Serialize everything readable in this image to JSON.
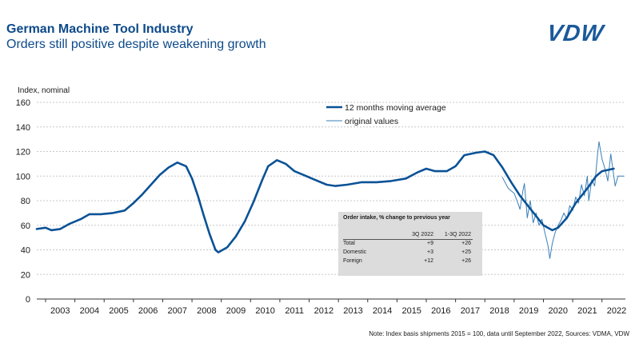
{
  "header": {
    "title": "German Machine Tool Industry",
    "subtitle": "Orders still positive despite weakening growth",
    "logo_text": "VDW"
  },
  "footer": {
    "note": "Note: Index basis shipments 2015 = 100, data until September 2022, Sources: VDMA, VDW"
  },
  "colors": {
    "title": "#0d4a8a",
    "moving_average": "#0a5296",
    "original": "#3a7fb8",
    "table_bg": "#dcdcdc"
  },
  "table": {
    "title": "Order intake, % change to previous year",
    "columns": [
      "3Q 2022",
      "1-3Q 2022"
    ],
    "rows": [
      {
        "label": "Total",
        "q3": "+9",
        "ytd": "+26"
      },
      {
        "label": "Domestic",
        "q3": "+3",
        "ytd": "+25"
      },
      {
        "label": "Foreign",
        "q3": "+12",
        "ytd": "+26"
      }
    ]
  },
  "chart_data": {
    "type": "line",
    "title": "German Machine Tool Industry",
    "ylabel": "Index, nominal",
    "xlabel": "",
    "ylim": [
      0,
      160
    ],
    "yticks": [
      "0",
      "20",
      "40",
      "60",
      "80",
      "100",
      "120",
      "140",
      "160"
    ],
    "xlim": [
      2002.7,
      2022.8
    ],
    "categories": [
      "2003",
      "2004",
      "2005",
      "2006",
      "2007",
      "2008",
      "2009",
      "2010",
      "2011",
      "2012",
      "2013",
      "2014",
      "2015",
      "2016",
      "2017",
      "2018",
      "2019",
      "2020",
      "2021",
      "2022"
    ],
    "legend": {
      "position": "top-center",
      "entries": [
        "12 months moving average",
        "original values"
      ]
    },
    "series": [
      {
        "name": "12 months moving average",
        "points": [
          [
            2002.7,
            57
          ],
          [
            2003.0,
            58
          ],
          [
            2003.2,
            56
          ],
          [
            2003.5,
            57
          ],
          [
            2003.8,
            61
          ],
          [
            2004.2,
            65
          ],
          [
            2004.5,
            69
          ],
          [
            2004.9,
            69
          ],
          [
            2005.3,
            70
          ],
          [
            2005.7,
            72
          ],
          [
            2006.0,
            78
          ],
          [
            2006.3,
            85
          ],
          [
            2006.6,
            93
          ],
          [
            2006.9,
            101
          ],
          [
            2007.2,
            107
          ],
          [
            2007.5,
            111
          ],
          [
            2007.8,
            108
          ],
          [
            2008.0,
            98
          ],
          [
            2008.2,
            84
          ],
          [
            2008.4,
            68
          ],
          [
            2008.6,
            53
          ],
          [
            2008.8,
            40
          ],
          [
            2008.9,
            38
          ],
          [
            2009.2,
            42
          ],
          [
            2009.5,
            51
          ],
          [
            2009.8,
            63
          ],
          [
            2010.1,
            79
          ],
          [
            2010.4,
            97
          ],
          [
            2010.6,
            108
          ],
          [
            2010.9,
            113
          ],
          [
            2011.2,
            110
          ],
          [
            2011.5,
            104
          ],
          [
            2011.8,
            101
          ],
          [
            2012.2,
            97
          ],
          [
            2012.6,
            93
          ],
          [
            2012.9,
            92
          ],
          [
            2013.3,
            93
          ],
          [
            2013.8,
            95
          ],
          [
            2014.3,
            95
          ],
          [
            2014.8,
            96
          ],
          [
            2015.3,
            98
          ],
          [
            2015.7,
            103
          ],
          [
            2016.0,
            106
          ],
          [
            2016.3,
            104
          ],
          [
            2016.7,
            104
          ],
          [
            2017.0,
            108
          ],
          [
            2017.3,
            117
          ],
          [
            2017.7,
            119
          ],
          [
            2018.0,
            120
          ],
          [
            2018.3,
            117
          ],
          [
            2018.6,
            107
          ],
          [
            2018.9,
            95
          ],
          [
            2019.2,
            84
          ],
          [
            2019.5,
            75
          ],
          [
            2019.8,
            66
          ],
          [
            2020.0,
            60
          ],
          [
            2020.3,
            56
          ],
          [
            2020.5,
            58
          ],
          [
            2020.8,
            66
          ],
          [
            2021.1,
            78
          ],
          [
            2021.5,
            90
          ],
          [
            2021.8,
            100
          ],
          [
            2022.0,
            104
          ],
          [
            2022.4,
            106
          ]
        ]
      },
      {
        "name": "original values",
        "points": [
          [
            2018.6,
            99
          ],
          [
            2018.8,
            90
          ],
          [
            2019.0,
            86
          ],
          [
            2019.1,
            80
          ],
          [
            2019.2,
            73
          ],
          [
            2019.3,
            88
          ],
          [
            2019.35,
            94
          ],
          [
            2019.45,
            66
          ],
          [
            2019.55,
            80
          ],
          [
            2019.65,
            62
          ],
          [
            2019.75,
            70
          ],
          [
            2019.85,
            60
          ],
          [
            2019.95,
            65
          ],
          [
            2020.05,
            54
          ],
          [
            2020.15,
            44
          ],
          [
            2020.22,
            33
          ],
          [
            2020.3,
            45
          ],
          [
            2020.4,
            54
          ],
          [
            2020.5,
            60
          ],
          [
            2020.6,
            64
          ],
          [
            2020.7,
            70
          ],
          [
            2020.8,
            65
          ],
          [
            2020.9,
            76
          ],
          [
            2021.0,
            72
          ],
          [
            2021.1,
            83
          ],
          [
            2021.2,
            78
          ],
          [
            2021.3,
            93
          ],
          [
            2021.4,
            84
          ],
          [
            2021.5,
            100
          ],
          [
            2021.55,
            80
          ],
          [
            2021.65,
            97
          ],
          [
            2021.75,
            92
          ],
          [
            2021.85,
            118
          ],
          [
            2021.9,
            128
          ],
          [
            2022.0,
            114
          ],
          [
            2022.1,
            106
          ],
          [
            2022.2,
            96
          ],
          [
            2022.3,
            118
          ],
          [
            2022.45,
            92
          ],
          [
            2022.55,
            100
          ],
          [
            2022.75,
            100
          ]
        ]
      }
    ]
  }
}
